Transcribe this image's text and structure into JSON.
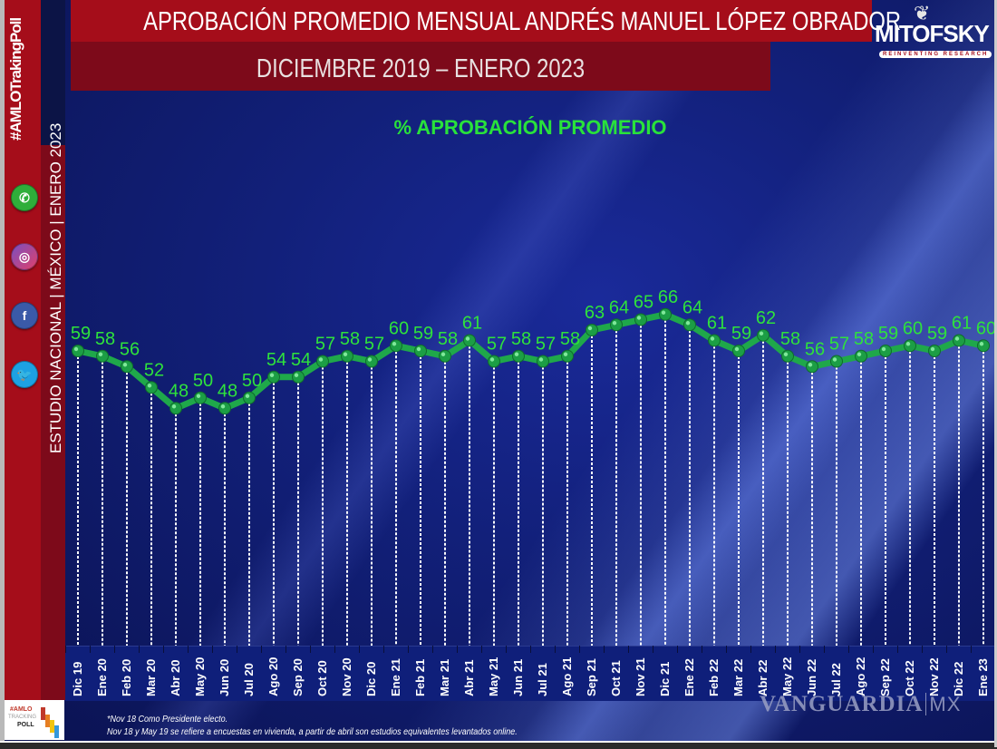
{
  "header": {
    "title_line1": "APROBACIÓN PROMEDIO MENSUAL ANDRÉS MANUEL LÓPEZ OBRADOR",
    "title_line2": "DICIEMBRE 2019 – ENERO 2023",
    "logo_text": "MITOFSKY",
    "logo_tagline": "REINVENTING RESEARCH"
  },
  "sidebar": {
    "hashtag": "#AMLOTrakingPoll",
    "study_label": "ESTUDIO NACIONAL  |  MÉXICO  |  ENERO 2023",
    "social_icons": [
      "whatsapp-icon",
      "instagram-icon",
      "facebook-icon",
      "twitter-icon"
    ]
  },
  "colors": {
    "background": "#0b1450",
    "header_red": "#a50d1a",
    "header_dark_red": "#7d0a1a",
    "series_green": "#1fa84a",
    "label_green": "#29e23b"
  },
  "chart_data": {
    "type": "line",
    "title": "% APROBACIÓN PROMEDIO",
    "xlabel": "",
    "ylabel": "",
    "ylim": [
      45,
      70
    ],
    "grid": false,
    "legend": null,
    "categories": [
      "Dic 19",
      "Ene 20",
      "Feb 20",
      "Mar 20",
      "Abr 20",
      "May 20",
      "Jun 20",
      "Jul 20",
      "Ago 20",
      "Sep 20",
      "Oct 20",
      "Nov 20",
      "Dic 20",
      "Ene 21",
      "Feb 21",
      "Mar 21",
      "Abr 21",
      "May 21",
      "Jun 21",
      "Jul 21",
      "Ago 21",
      "Sep 21",
      "Oct 21",
      "Nov 21",
      "Dic 21",
      "Ene 22",
      "Feb 22",
      "Mar 22",
      "Abr 22",
      "May 22",
      "Jun 22",
      "Jul 22",
      "Ago 22",
      "Sep 22",
      "Oct 22",
      "Nov 22",
      "Dic 22",
      "Ene 23"
    ],
    "series": [
      {
        "name": "% Aprobación promedio",
        "values": [
          59,
          58,
          56,
          52,
          48,
          50,
          48,
          50,
          54,
          54,
          57,
          58,
          57,
          60,
          59,
          58,
          61,
          57,
          58,
          57,
          58,
          63,
          64,
          65,
          66,
          64,
          61,
          59,
          62,
          58,
          56,
          57,
          58,
          59,
          60,
          59,
          61,
          60
        ]
      }
    ]
  },
  "footer": {
    "note1": "*Nov 18 Como Presidente electo.",
    "note2": "Nov 18 y May 19 se refiere a encuestas en vivienda, a partir de abril son estudios equivalentes levantados online.",
    "watermark": "VANGUARDIA",
    "watermark_suffix": "MX",
    "tracking_logo": "AMLO TRACKING POLL"
  }
}
